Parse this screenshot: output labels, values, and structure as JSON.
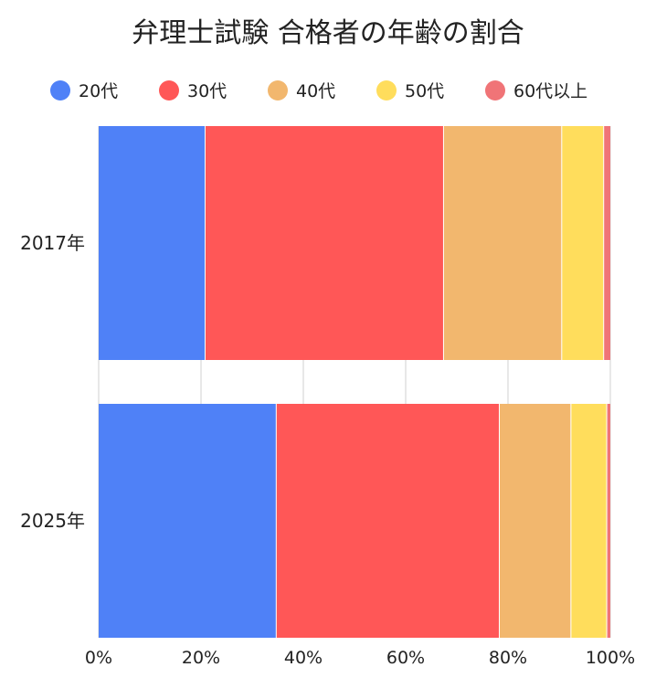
{
  "chart_data": {
    "type": "bar",
    "orientation": "horizontal",
    "stacked": "percent",
    "title": "弁理士試験 合格者の年齢の割合",
    "categories": [
      "2017年",
      "2025年"
    ],
    "series": [
      {
        "name": "20代",
        "color": "#4f81f7",
        "values": [
          20.8,
          34.7
        ]
      },
      {
        "name": "30代",
        "color": "#ff5757",
        "values": [
          46.6,
          43.6
        ]
      },
      {
        "name": "40代",
        "color": "#f2b76e",
        "values": [
          23.1,
          14.0
        ]
      },
      {
        "name": "50代",
        "color": "#ffdd5c",
        "values": [
          8.2,
          7.0
        ]
      },
      {
        "name": "60代以上",
        "color": "#f07477",
        "values": [
          1.3,
          0.7
        ]
      }
    ],
    "xlim": [
      0,
      100
    ],
    "x_ticks": [
      "0%",
      "20%",
      "40%",
      "60%",
      "80%",
      "100%"
    ],
    "grid": true,
    "legend_position": "top"
  }
}
